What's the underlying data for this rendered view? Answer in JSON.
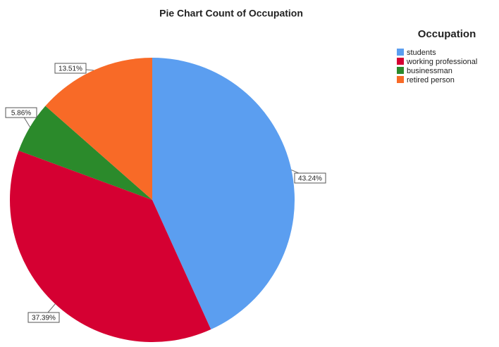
{
  "chart_data": {
    "type": "pie",
    "title": "Pie Chart Count of Occupation",
    "legend_title": "Occupation",
    "legend_position": "upper right",
    "categories": [
      "students",
      "working professional",
      "businessman",
      "retired person"
    ],
    "values": [
      43.24,
      37.39,
      5.86,
      13.51
    ],
    "value_labels": [
      "43.24%",
      "37.39%",
      "5.86%",
      "13.51%"
    ],
    "colors": [
      "#5b9ef0",
      "#d50032",
      "#2b8a2b",
      "#f86a27"
    ]
  }
}
